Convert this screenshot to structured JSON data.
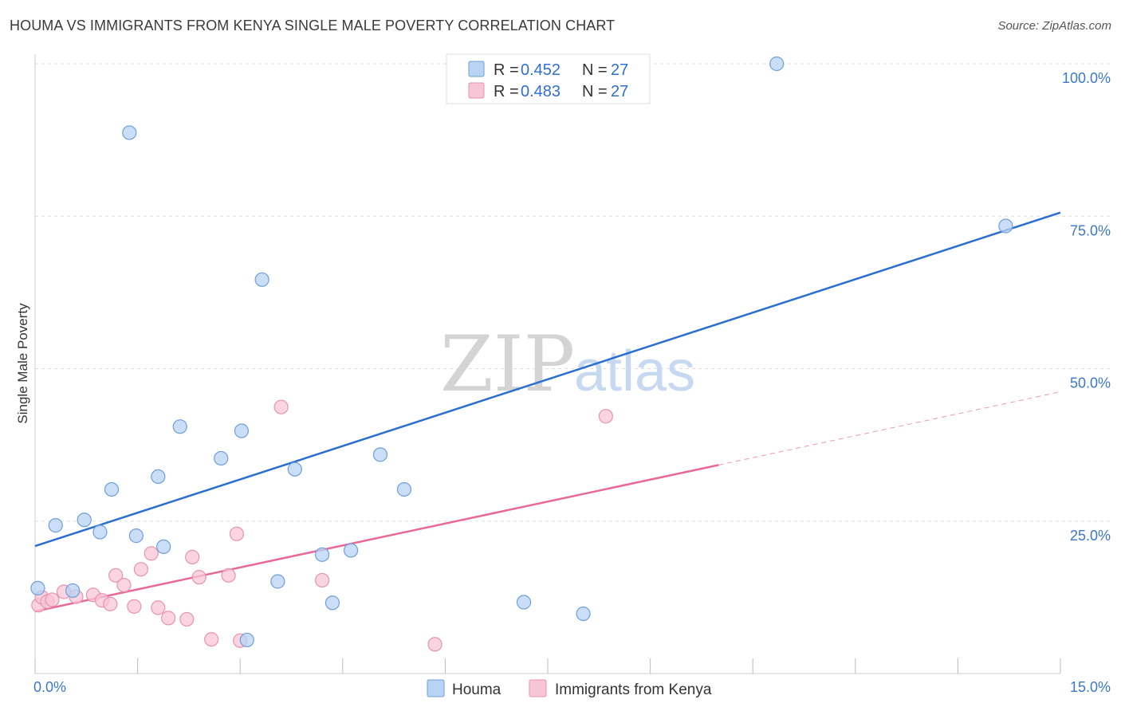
{
  "header": {
    "title": "HOUMA VS IMMIGRANTS FROM KENYA SINGLE MALE POVERTY CORRELATION CHART",
    "source": "Source: ZipAtlas.com"
  },
  "watermark": {
    "zip": "ZIP",
    "atlas": "atlas"
  },
  "colors": {
    "houma_fill": "#b8d3f4",
    "houma_stroke": "#6e9fd8",
    "houma_line": "#2a6fd0",
    "kenya_fill": "#f8c5d6",
    "kenya_stroke": "#e693b0",
    "kenya_line": "#e8689a",
    "grid": "#dddddd",
    "axis_text": "#3b78c8"
  },
  "legend": {
    "rows": [
      {
        "r_label": "R =",
        "r_value": "0.452",
        "n_label": "N =",
        "n_value": "27"
      },
      {
        "r_label": "R =",
        "r_value": "0.483",
        "n_label": "N =",
        "n_value": "27"
      }
    ]
  },
  "bottom_legend": {
    "items": [
      {
        "label": "Houma"
      },
      {
        "label": "Immigrants from Kenya"
      }
    ]
  },
  "chart_data": {
    "type": "scatter",
    "title": "HOUMA VS IMMIGRANTS FROM KENYA SINGLE MALE POVERTY CORRELATION CHART",
    "xlabel": "",
    "ylabel": "Single Male Poverty",
    "xlim": [
      0,
      15
    ],
    "ylim": [
      0,
      100
    ],
    "x_tick_labels": [
      "0.0%",
      "15.0%"
    ],
    "y_ticks": [
      25,
      50,
      75,
      100
    ],
    "y_tick_labels": [
      "25.0%",
      "50.0%",
      "75.0%",
      "100.0%"
    ],
    "grid": true,
    "legend_placement": "top-center",
    "series": [
      {
        "name": "Houma",
        "r": 0.452,
        "n": 27,
        "points": [
          [
            0.04,
            14.0
          ],
          [
            0.3,
            24.3
          ],
          [
            0.55,
            13.6
          ],
          [
            0.72,
            25.2
          ],
          [
            0.95,
            23.2
          ],
          [
            1.12,
            30.2
          ],
          [
            1.38,
            88.7
          ],
          [
            1.48,
            22.6
          ],
          [
            1.8,
            32.3
          ],
          [
            1.88,
            20.8
          ],
          [
            2.12,
            40.5
          ],
          [
            2.72,
            35.3
          ],
          [
            3.02,
            39.8
          ],
          [
            3.1,
            5.5
          ],
          [
            3.32,
            64.6
          ],
          [
            3.55,
            15.1
          ],
          [
            3.8,
            33.5
          ],
          [
            4.2,
            19.5
          ],
          [
            4.35,
            11.6
          ],
          [
            4.62,
            20.2
          ],
          [
            5.05,
            35.9
          ],
          [
            5.4,
            30.2
          ],
          [
            7.15,
            11.7
          ],
          [
            7.25,
            100.0
          ],
          [
            8.02,
            9.8
          ],
          [
            10.85,
            100.0
          ],
          [
            14.2,
            73.4
          ]
        ],
        "trend": {
          "x": [
            0,
            15
          ],
          "y": [
            20.9,
            75.6
          ]
        }
      },
      {
        "name": "Immigrants from Kenya",
        "r": 0.483,
        "n": 27,
        "points": [
          [
            0.05,
            11.2
          ],
          [
            0.1,
            12.5
          ],
          [
            0.18,
            11.8
          ],
          [
            0.25,
            12.1
          ],
          [
            0.42,
            13.4
          ],
          [
            0.6,
            12.6
          ],
          [
            0.85,
            12.9
          ],
          [
            0.98,
            12.0
          ],
          [
            1.1,
            11.4
          ],
          [
            1.18,
            16.1
          ],
          [
            1.3,
            14.5
          ],
          [
            1.45,
            11.0
          ],
          [
            1.55,
            17.1
          ],
          [
            1.7,
            19.7
          ],
          [
            1.8,
            10.8
          ],
          [
            1.95,
            9.1
          ],
          [
            2.22,
            8.9
          ],
          [
            2.3,
            19.1
          ],
          [
            2.4,
            15.8
          ],
          [
            2.58,
            5.6
          ],
          [
            2.83,
            16.1
          ],
          [
            2.95,
            22.9
          ],
          [
            3.0,
            5.4
          ],
          [
            3.6,
            43.7
          ],
          [
            4.2,
            15.3
          ],
          [
            5.85,
            4.8
          ],
          [
            8.35,
            42.2
          ]
        ],
        "trend": {
          "x": [
            0,
            10.0
          ],
          "y": [
            10.2,
            34.2
          ]
        },
        "trend_extension": {
          "x": [
            10.0,
            15
          ],
          "y": [
            34.2,
            46.2
          ]
        }
      }
    ]
  }
}
